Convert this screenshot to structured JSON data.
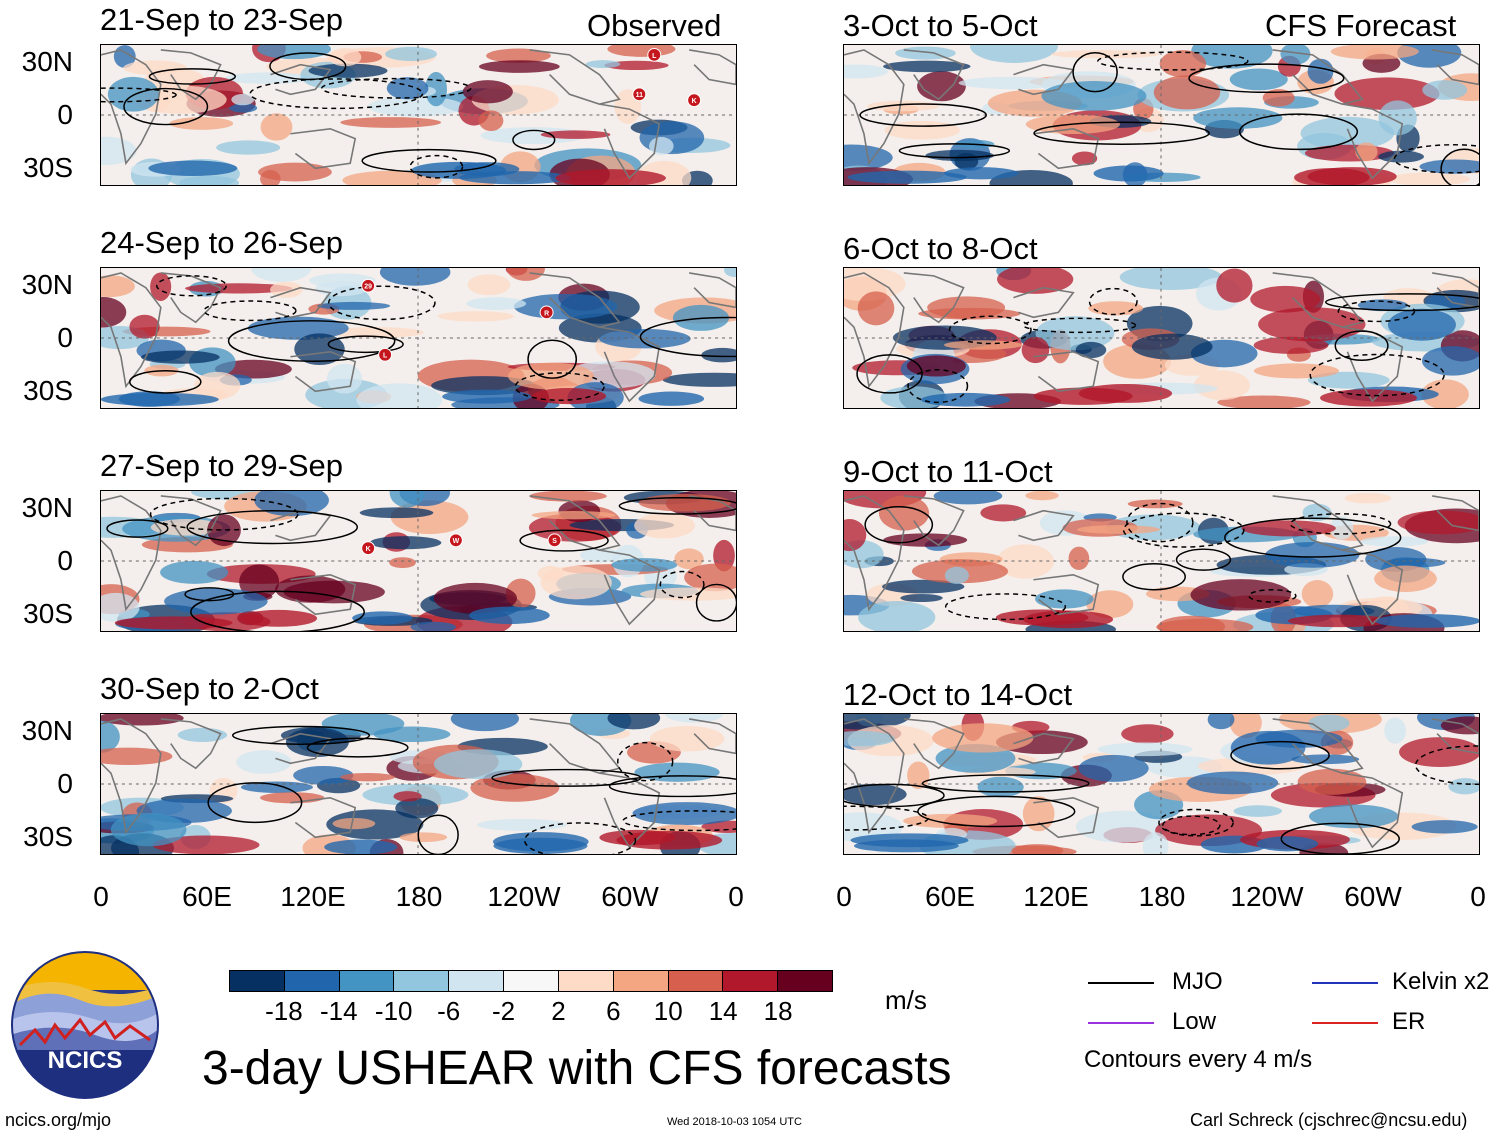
{
  "columns": {
    "left_title": "Observed",
    "right_title": "CFS Forecast"
  },
  "panels": {
    "left": [
      "21-Sep to 23-Sep",
      "24-Sep to 26-Sep",
      "27-Sep to 29-Sep",
      "30-Sep to 2-Oct"
    ],
    "right": [
      "3-Oct to 5-Oct",
      "6-Oct to 8-Oct",
      "9-Oct to 11-Oct",
      "12-Oct to 14-Oct"
    ]
  },
  "lat_labels": [
    "30N",
    "0",
    "30S"
  ],
  "lon_labels": [
    "0",
    "60E",
    "120E",
    "180",
    "120W",
    "60W",
    "0"
  ],
  "storm_markers": {
    "p0": [
      "L",
      "11",
      "K"
    ],
    "p1": [
      "29",
      "R",
      "L"
    ],
    "p2": [
      "K",
      "W",
      "S"
    ]
  },
  "colorbar": {
    "labels": [
      "-18",
      "-14",
      "-10",
      "-6",
      "-2",
      "2",
      "6",
      "10",
      "14",
      "18"
    ],
    "colors": [
      "#053061",
      "#2166ac",
      "#4393c3",
      "#92c5de",
      "#d1e5f0",
      "#f7f7f7",
      "#fddbc7",
      "#f4a582",
      "#d6604d",
      "#b2182b",
      "#67001f"
    ],
    "units": "m/s"
  },
  "legend": {
    "items": [
      {
        "label": "MJO",
        "color": "#000000"
      },
      {
        "label": "Kelvin x2",
        "color": "#2233bb"
      },
      {
        "label": "Low",
        "color": "#9933dd"
      },
      {
        "label": "ER",
        "color": "#dd2222"
      }
    ],
    "note": "Contours every 4 m/s"
  },
  "main_title": "3-day USHEAR with CFS forecasts",
  "logo_text": "NCICS",
  "footer": {
    "url": "ncics.org/mjo",
    "timestamp": "Wed 2018-10-03 1054 UTC",
    "credit": "Carl Schreck (cjschrec@ncsu.edu)"
  }
}
